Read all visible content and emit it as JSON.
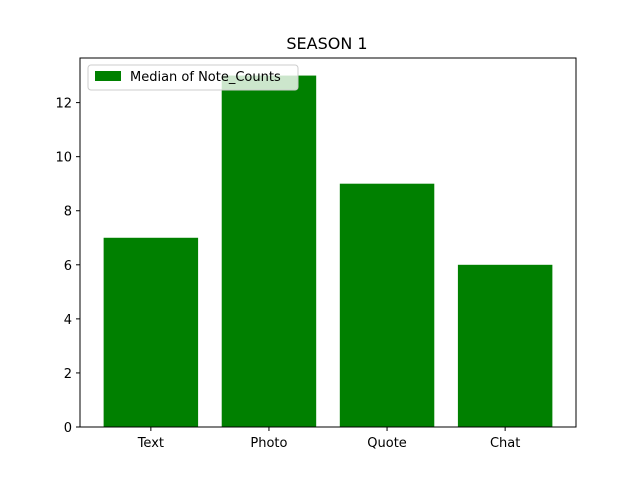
{
  "chart_data": {
    "type": "bar",
    "title": "SEASON 1",
    "xlabel": "",
    "ylabel": "",
    "categories": [
      "Text",
      "Photo",
      "Quote",
      "Chat"
    ],
    "series": [
      {
        "name": "Median of Note_Counts",
        "values": [
          7,
          13,
          9,
          6
        ],
        "color": "#008000"
      }
    ],
    "ylim": [
      0,
      13.65
    ],
    "yticks": [
      0,
      2,
      4,
      6,
      8,
      10,
      12
    ],
    "grid": false,
    "legend_position": "top-left"
  }
}
